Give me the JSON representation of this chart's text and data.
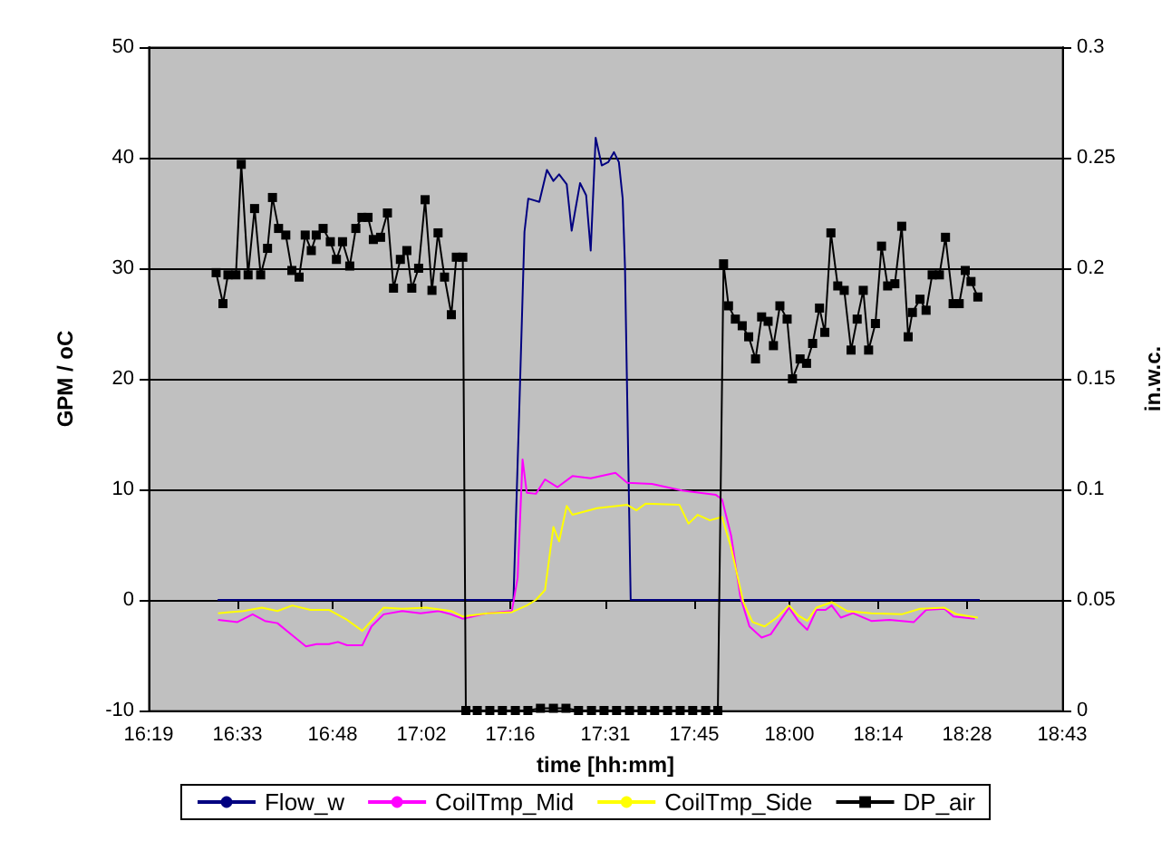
{
  "chart_data": {
    "type": "line",
    "xlabel": "time [hh:mm]",
    "ylabel": "GPM / oC",
    "y2label": "in.w.c.",
    "xlim": [
      16.3167,
      18.7167
    ],
    "xticks": [
      {
        "value": 16.3167,
        "label": "16:19"
      },
      {
        "value": 16.55,
        "label": "16:33"
      },
      {
        "value": 16.8,
        "label": "16:48"
      },
      {
        "value": 17.0333,
        "label": "17:02"
      },
      {
        "value": 17.2667,
        "label": "17:16"
      },
      {
        "value": 17.5167,
        "label": "17:31"
      },
      {
        "value": 17.75,
        "label": "17:45"
      },
      {
        "value": 18.0,
        "label": "18:00"
      },
      {
        "value": 18.2333,
        "label": "18:14"
      },
      {
        "value": 18.4667,
        "label": "18:28"
      },
      {
        "value": 18.7167,
        "label": "18:43"
      }
    ],
    "ylim": [
      -10,
      50
    ],
    "yticks": [
      -10,
      0,
      10,
      20,
      30,
      40,
      50
    ],
    "y2lim": [
      0,
      0.3
    ],
    "y2ticks": [
      0,
      0.05,
      0.1,
      0.15,
      0.2,
      0.25,
      0.3
    ],
    "grid": "y",
    "legend": "bottom",
    "series": [
      {
        "name": "Flow_w",
        "color": "#000080",
        "marker": "none",
        "x": [
          16.498,
          17.275,
          17.29,
          17.304,
          17.314,
          17.343,
          17.363,
          17.38,
          17.395,
          17.415,
          17.428,
          17.45,
          17.466,
          17.478,
          17.491,
          17.507,
          17.524,
          17.539,
          17.552,
          17.562,
          17.568,
          17.583,
          18.5
        ],
        "values": [
          0,
          0,
          16.8,
          33.3,
          36.3,
          36,
          38.9,
          37.9,
          38.5,
          37.6,
          33.4,
          37.7,
          36.6,
          31.6,
          41.8,
          39.3,
          39.6,
          40.5,
          39.6,
          36.3,
          30.2,
          0,
          0
        ]
      },
      {
        "name": "CoilTmp_Mid",
        "color": "#ff00ff",
        "marker": "none",
        "x": [
          16.499,
          16.55,
          16.59,
          16.622,
          16.655,
          16.694,
          16.73,
          16.758,
          16.79,
          16.814,
          16.838,
          16.878,
          16.902,
          16.934,
          16.983,
          17.031,
          17.079,
          17.111,
          17.142,
          17.207,
          17.271,
          17.286,
          17.299,
          17.31,
          17.334,
          17.358,
          17.391,
          17.43,
          17.478,
          17.543,
          17.574,
          17.639,
          17.718,
          17.807,
          17.823,
          17.847,
          17.871,
          17.895,
          17.927,
          17.951,
          17.999,
          18.023,
          18.047,
          18.071,
          18.095,
          18.111,
          18.135,
          18.167,
          18.215,
          18.263,
          18.327,
          18.359,
          18.407,
          18.431,
          18.487
        ],
        "values": [
          -1.8,
          -2.0,
          -1.3,
          -1.9,
          -2.1,
          -3.2,
          -4.2,
          -4.0,
          -4.0,
          -3.8,
          -4.1,
          -4.1,
          -2.4,
          -1.3,
          -1.0,
          -1.2,
          -1.0,
          -1.3,
          -1.7,
          -1.2,
          -1.0,
          2.0,
          12.7,
          9.7,
          9.6,
          10.9,
          10.2,
          11.2,
          11.0,
          11.5,
          10.6,
          10.5,
          9.9,
          9.5,
          9.1,
          5.8,
          0.3,
          -2.4,
          -3.4,
          -3.1,
          -0.7,
          -1.9,
          -2.7,
          -0.9,
          -0.9,
          -0.5,
          -1.6,
          -1.2,
          -1.9,
          -1.8,
          -2.0,
          -0.9,
          -0.8,
          -1.5,
          -1.7
        ]
      },
      {
        "name": "CoilTmp_Side",
        "color": "#ffff00",
        "marker": "none",
        "x": [
          16.499,
          16.566,
          16.614,
          16.655,
          16.694,
          16.742,
          16.79,
          16.838,
          16.878,
          16.934,
          16.983,
          17.046,
          17.111,
          17.142,
          17.207,
          17.271,
          17.31,
          17.334,
          17.358,
          17.38,
          17.395,
          17.415,
          17.43,
          17.495,
          17.574,
          17.598,
          17.622,
          17.711,
          17.735,
          17.759,
          17.791,
          17.823,
          17.847,
          17.879,
          17.903,
          17.935,
          17.967,
          17.999,
          18.023,
          18.047,
          18.071,
          18.111,
          18.151,
          18.215,
          18.295,
          18.343,
          18.407,
          18.439,
          18.495
        ],
        "values": [
          -1.2,
          -1.0,
          -0.7,
          -1.0,
          -0.5,
          -0.9,
          -0.9,
          -1.8,
          -2.8,
          -0.7,
          -0.8,
          -0.7,
          -1.0,
          -1.5,
          -1.2,
          -1.1,
          -0.5,
          0.0,
          0.9,
          6.6,
          5.3,
          8.5,
          7.7,
          8.3,
          8.6,
          8.1,
          8.7,
          8.6,
          6.9,
          7.7,
          7.2,
          7.5,
          4.7,
          -0.2,
          -2.0,
          -2.4,
          -1.6,
          -0.5,
          -1.4,
          -1.9,
          -0.7,
          -0.2,
          -1.0,
          -1.2,
          -1.3,
          -0.8,
          -0.7,
          -1.3,
          -1.6
        ]
      },
      {
        "name": "DP_air",
        "color": "#000000",
        "marker": "square",
        "axis": "y2",
        "x": [
          16.494,
          16.512,
          16.525,
          16.546,
          16.56,
          16.578,
          16.595,
          16.611,
          16.629,
          16.642,
          16.658,
          16.677,
          16.693,
          16.712,
          16.728,
          16.744,
          16.757,
          16.775,
          16.794,
          16.81,
          16.826,
          16.845,
          16.861,
          16.877,
          16.893,
          16.907,
          16.926,
          16.944,
          16.96,
          16.978,
          16.995,
          17.008,
          17.026,
          17.043,
          17.061,
          17.077,
          17.094,
          17.112,
          17.125,
          17.142,
          17.15,
          17.18,
          17.213,
          17.246,
          17.28,
          17.313,
          17.346,
          17.38,
          17.413,
          17.446,
          17.48,
          17.513,
          17.546,
          17.58,
          17.613,
          17.646,
          17.68,
          17.713,
          17.746,
          17.78,
          17.812,
          17.827,
          17.84,
          17.858,
          17.876,
          17.893,
          17.911,
          17.927,
          17.944,
          17.958,
          17.975,
          17.994,
          18.008,
          18.028,
          18.045,
          18.061,
          18.079,
          18.093,
          18.109,
          18.127,
          18.144,
          18.162,
          18.178,
          18.194,
          18.208,
          18.226,
          18.242,
          18.258,
          18.277,
          18.295,
          18.312,
          18.323,
          18.343,
          18.359,
          18.375,
          18.394,
          18.41,
          18.43,
          18.446,
          18.462,
          18.477,
          18.495
        ],
        "values": [
          0.198,
          0.184,
          0.197,
          0.197,
          0.247,
          0.197,
          0.227,
          0.197,
          0.209,
          0.232,
          0.218,
          0.215,
          0.199,
          0.196,
          0.215,
          0.208,
          0.215,
          0.218,
          0.212,
          0.204,
          0.212,
          0.201,
          0.218,
          0.223,
          0.223,
          0.213,
          0.214,
          0.225,
          0.191,
          0.204,
          0.208,
          0.191,
          0.2,
          0.231,
          0.19,
          0.216,
          0.196,
          0.179,
          0.205,
          0.205,
          0,
          0,
          0,
          0,
          0,
          0,
          0.001,
          0.001,
          0.001,
          0,
          0,
          0,
          0,
          0,
          0,
          0,
          0,
          0,
          0,
          0,
          0,
          0.202,
          0.183,
          0.177,
          0.174,
          0.169,
          0.159,
          0.178,
          0.176,
          0.165,
          0.183,
          0.177,
          0.15,
          0.159,
          0.157,
          0.166,
          0.182,
          0.171,
          0.216,
          0.192,
          0.19,
          0.163,
          0.177,
          0.19,
          0.163,
          0.175,
          0.21,
          0.192,
          0.193,
          0.219,
          0.169,
          0.18,
          0.186,
          0.181,
          0.197,
          0.197,
          0.214,
          0.184,
          0.184,
          0.199,
          0.194,
          0.187
        ]
      }
    ]
  }
}
